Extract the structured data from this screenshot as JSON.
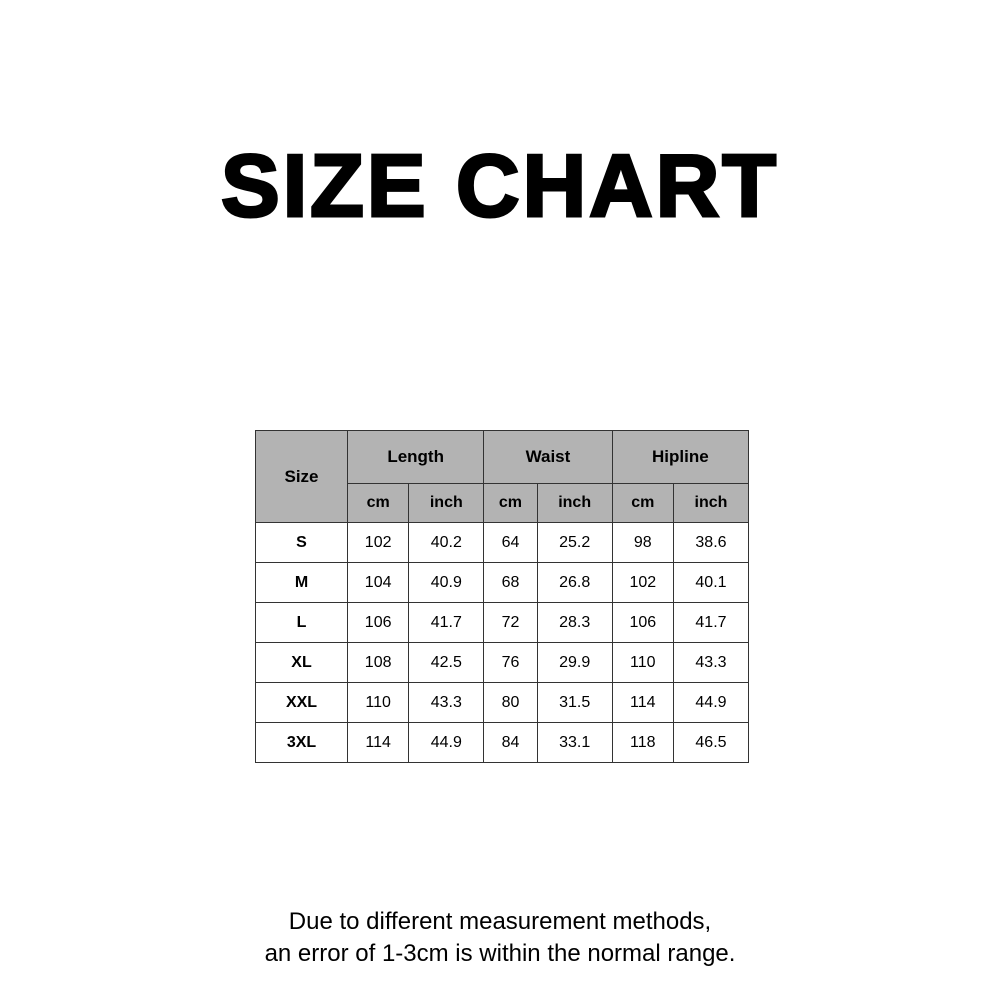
{
  "title": "SIZE CHART",
  "table": {
    "size_header": "Size",
    "groups": [
      "Length",
      "Waist",
      "Hipline"
    ],
    "units": [
      "cm",
      "inch",
      "cm",
      "inch",
      "cm",
      "inch"
    ],
    "rows": [
      {
        "size": "S",
        "values": [
          "102",
          "40.2",
          "64",
          "25.2",
          "98",
          "38.6"
        ]
      },
      {
        "size": "M",
        "values": [
          "104",
          "40.9",
          "68",
          "26.8",
          "102",
          "40.1"
        ]
      },
      {
        "size": "L",
        "values": [
          "106",
          "41.7",
          "72",
          "28.3",
          "106",
          "41.7"
        ]
      },
      {
        "size": "XL",
        "values": [
          "108",
          "42.5",
          "76",
          "29.9",
          "110",
          "43.3"
        ]
      },
      {
        "size": "XXL",
        "values": [
          "110",
          "43.3",
          "80",
          "31.5",
          "114",
          "44.9"
        ]
      },
      {
        "size": "3XL",
        "values": [
          "114",
          "44.9",
          "84",
          "33.1",
          "118",
          "46.5"
        ]
      }
    ],
    "header_color": "#b3b3b3"
  },
  "note": {
    "line1": "Due to different measurement methods,",
    "line2": "an error of 1-3cm is within the normal range."
  }
}
